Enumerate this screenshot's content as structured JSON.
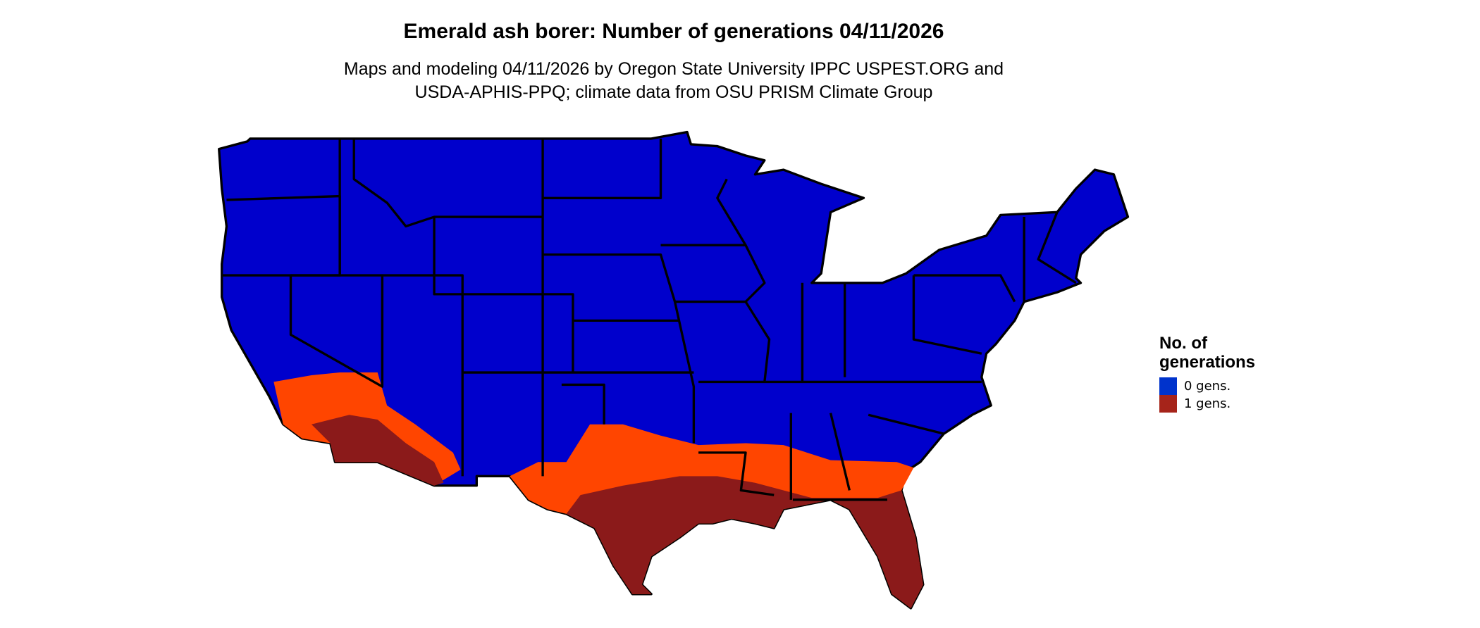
{
  "title": "Emerald ash borer: Number of generations 04/11/2026",
  "subtitle_line1": "Maps and modeling 04/11/2026 by Oregon State University IPPC USPEST.ORG and",
  "subtitle_line2": "USDA-APHIS-PPQ; climate data from OSU PRISM Climate Group",
  "legend": {
    "title_line1": "No. of",
    "title_line2": "generations",
    "items": [
      {
        "label": "0 gens.",
        "color": "#0033cc"
      },
      {
        "label": "1 gens.",
        "color": "#a6241a"
      }
    ]
  },
  "map_colors": {
    "zero_gens": "#0000cc",
    "one_gen_dark": "#8b1a1a",
    "one_gen_light": "#ff4500",
    "borders": "#000000"
  }
}
